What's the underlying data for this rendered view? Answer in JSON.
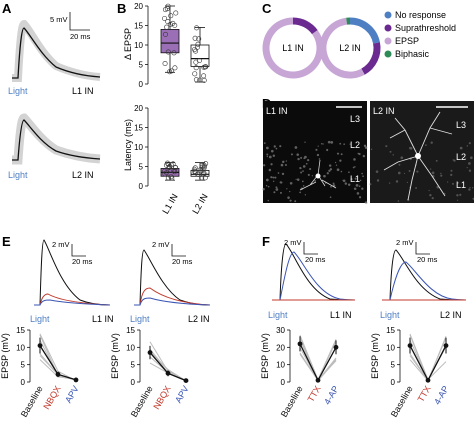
{
  "panels": {
    "A": {
      "label": "A",
      "scalebar_y": "5 mV",
      "scalebar_x": "20 ms",
      "light": "Light",
      "trace1": "L1 IN",
      "trace2": "L2 IN"
    },
    "B": {
      "label": "B",
      "top": {
        "ylabel": "Δ EPSP",
        "yticks": [
          "0",
          "5",
          "10",
          "15",
          "20"
        ],
        "ylim": [
          0,
          20
        ],
        "boxes": [
          {
            "name": "L1 IN",
            "q1": 8,
            "median": 10.5,
            "q3": 14,
            "wlo": 3,
            "whi": 20,
            "color": "#9b6fb5"
          },
          {
            "name": "L2 IN",
            "q1": 4.5,
            "median": 6.5,
            "q3": 10,
            "wlo": 0.5,
            "whi": 14.5,
            "color": "#ffffff"
          }
        ]
      },
      "bottom": {
        "ylabel": "Latency (ms)",
        "yticks": [
          "0",
          "5",
          "10",
          "15",
          "20"
        ],
        "ylim": [
          0,
          20
        ],
        "boxes": [
          {
            "name": "L1 IN",
            "q1": 2.5,
            "median": 3.5,
            "q3": 4.5,
            "wlo": 1.5,
            "whi": 6,
            "color": "#9b6fb5"
          },
          {
            "name": "L2 IN",
            "q1": 2.5,
            "median": 3,
            "q3": 4,
            "wlo": 1.5,
            "whi": 6,
            "color": "#ffffff"
          }
        ],
        "xlabels": [
          "L1 IN",
          "L2 IN"
        ]
      }
    },
    "C": {
      "label": "C",
      "donut1": "L1 IN",
      "donut2": "L2 IN",
      "legend": [
        {
          "name": "No response",
          "color": "#4f7fc3"
        },
        {
          "name": "Suprathreshold",
          "color": "#6b2a8f"
        },
        {
          "name": "EPSP",
          "color": "#c7a6d6"
        },
        {
          "name": "Biphasic",
          "color": "#2e8b57"
        }
      ],
      "l1_fractions": [
        0.0,
        0.15,
        0.85,
        0.0
      ],
      "l2_fractions": [
        0.22,
        0.2,
        0.56,
        0.02
      ]
    },
    "D": {
      "label": "D",
      "img1": "L1 IN",
      "img2": "L2 IN",
      "layers1": [
        "L3",
        "L2",
        "L1"
      ],
      "layers2": [
        "L3",
        "L2",
        "L1"
      ]
    },
    "E": {
      "label": "E",
      "scalebar_y": "2 mV",
      "scalebar_x": "20 ms",
      "light": "Light",
      "cell1": "L1 IN",
      "cell2": "L2 IN",
      "ylabel": "EPSP (mV)",
      "yticks": [
        "0",
        "5",
        "10",
        "15"
      ],
      "xlabels": [
        "Baseline",
        "NBQX",
        "APV"
      ],
      "xcolors": [
        "#111111",
        "#c0392b",
        "#3a55b4"
      ],
      "mean1": [
        10.5,
        2.2,
        0.6
      ],
      "mean2": [
        8.5,
        2.5,
        0.4
      ]
    },
    "F": {
      "label": "F",
      "scalebar_y": "2 mV",
      "scalebar_x": "20 ms",
      "light": "Light",
      "cell1": "L1 IN",
      "cell2": "L2 IN",
      "ylabel": "EPSP (mV)",
      "yticks1": [
        "0",
        "10",
        "20",
        "30"
      ],
      "yticks2": [
        "0",
        "5",
        "10",
        "15"
      ],
      "xlabels": [
        "Baseline",
        "TTX",
        "4-AP"
      ],
      "xcolors": [
        "#111111",
        "#c0392b",
        "#3a55b4"
      ],
      "mean1": [
        22,
        1,
        20
      ],
      "mean2": [
        10.5,
        0.5,
        10.5
      ]
    }
  }
}
